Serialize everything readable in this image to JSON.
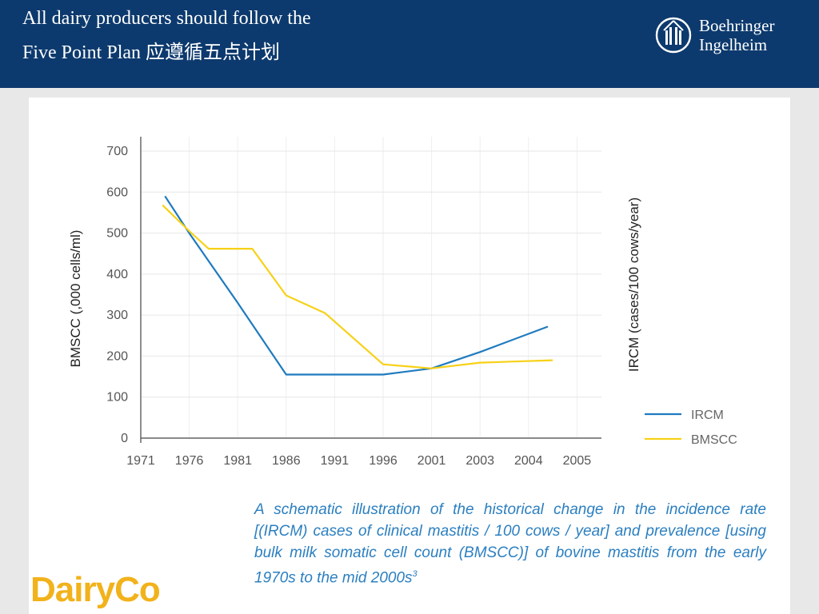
{
  "header": {
    "title_line1": "All dairy producers should follow the",
    "title_line2": "Five Point Plan 应遵循五点计划",
    "brand_line1": "Boehringer",
    "brand_line2": "Ingelheim",
    "bg_color": "#0d3a6e"
  },
  "caption": {
    "text": "A schematic illustration of the historical change in the incidence rate [(IRCM) cases of clinical mastitis / 100 cows / year] and prevalence [using bulk milk somatic cell count (BMSCC)] of bovine mastitis from the early 1970s to the mid 2000s",
    "ref": "3"
  },
  "footer_logo": {
    "text": "DairyCo"
  },
  "chart_data": {
    "type": "line",
    "categories": [
      "1971",
      "1976",
      "1981",
      "1986",
      "1991",
      "1996",
      "2001",
      "2003",
      "2004",
      "2005"
    ],
    "ylabel": "BMSCC (,000 cells/ml)",
    "y2label": "IRCM (cases/100 cows/year)",
    "ylim": [
      0,
      700
    ],
    "yticks": [
      "0",
      "100",
      "200",
      "300",
      "400",
      "500",
      "600",
      "700"
    ],
    "grid": true,
    "legend_position": "bottom-right",
    "series": [
      {
        "name": "IRCM",
        "color": "#1f7bbf",
        "points": [
          [
            0.5,
            590
          ],
          [
            1,
            500
          ],
          [
            2,
            330
          ],
          [
            3,
            155
          ],
          [
            5,
            155
          ],
          [
            6,
            170
          ],
          [
            7,
            210
          ],
          [
            8.4,
            272
          ]
        ]
      },
      {
        "name": "BMSCC",
        "color": "#f7d117",
        "points": [
          [
            0.45,
            568
          ],
          [
            1,
            505
          ],
          [
            1.4,
            462
          ],
          [
            2.3,
            462
          ],
          [
            3,
            348
          ],
          [
            3.8,
            305
          ],
          [
            5,
            180
          ],
          [
            6,
            170
          ],
          [
            7,
            184
          ],
          [
            8.5,
            190
          ]
        ]
      }
    ]
  }
}
